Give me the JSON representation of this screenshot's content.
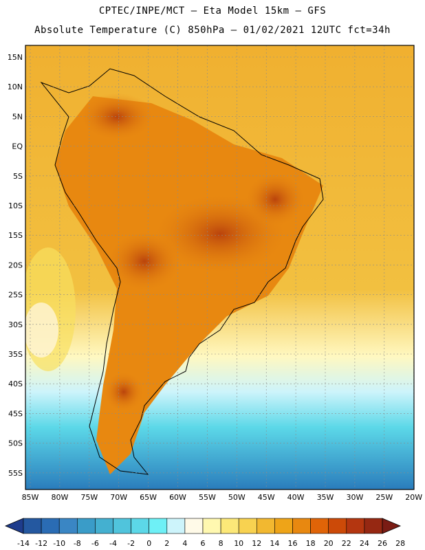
{
  "header": {
    "line1": "CPTEC/INPE/MCT –  Eta Model 15km – GFS",
    "line2": "Absolute Temperature (C) 850hPa – 01/02/2021 12UTC fct=34h"
  },
  "axes": {
    "lat_labels": [
      "15N",
      "10N",
      "5N",
      "EQ",
      "5S",
      "10S",
      "15S",
      "20S",
      "25S",
      "30S",
      "35S",
      "40S",
      "45S",
      "50S",
      "55S"
    ],
    "lon_labels": [
      "85W",
      "80W",
      "75W",
      "70W",
      "65W",
      "60W",
      "55W",
      "50W",
      "45W",
      "40W",
      "35W",
      "30W",
      "25W",
      "20W"
    ]
  },
  "colorbar": {
    "labels": [
      "-14",
      "-12",
      "-10",
      "-8",
      "-6",
      "-4",
      "-2",
      "0",
      "2",
      "4",
      "6",
      "8",
      "10",
      "12",
      "14",
      "16",
      "18",
      "20",
      "22",
      "24",
      "26",
      "28"
    ],
    "colors": [
      "#1e3c8c",
      "#2458a0",
      "#2a6cb4",
      "#3a86c4",
      "#3a9cc8",
      "#44b0d0",
      "#50c4dc",
      "#5cd8e8",
      "#6ef0f6",
      "#cdf4fb",
      "#fffae8",
      "#fff8b0",
      "#fce878",
      "#f8d250",
      "#f2b830",
      "#eea418",
      "#e88810",
      "#e06408",
      "#cc4a08",
      "#b43610",
      "#962812",
      "#7a1c14"
    ]
  }
}
